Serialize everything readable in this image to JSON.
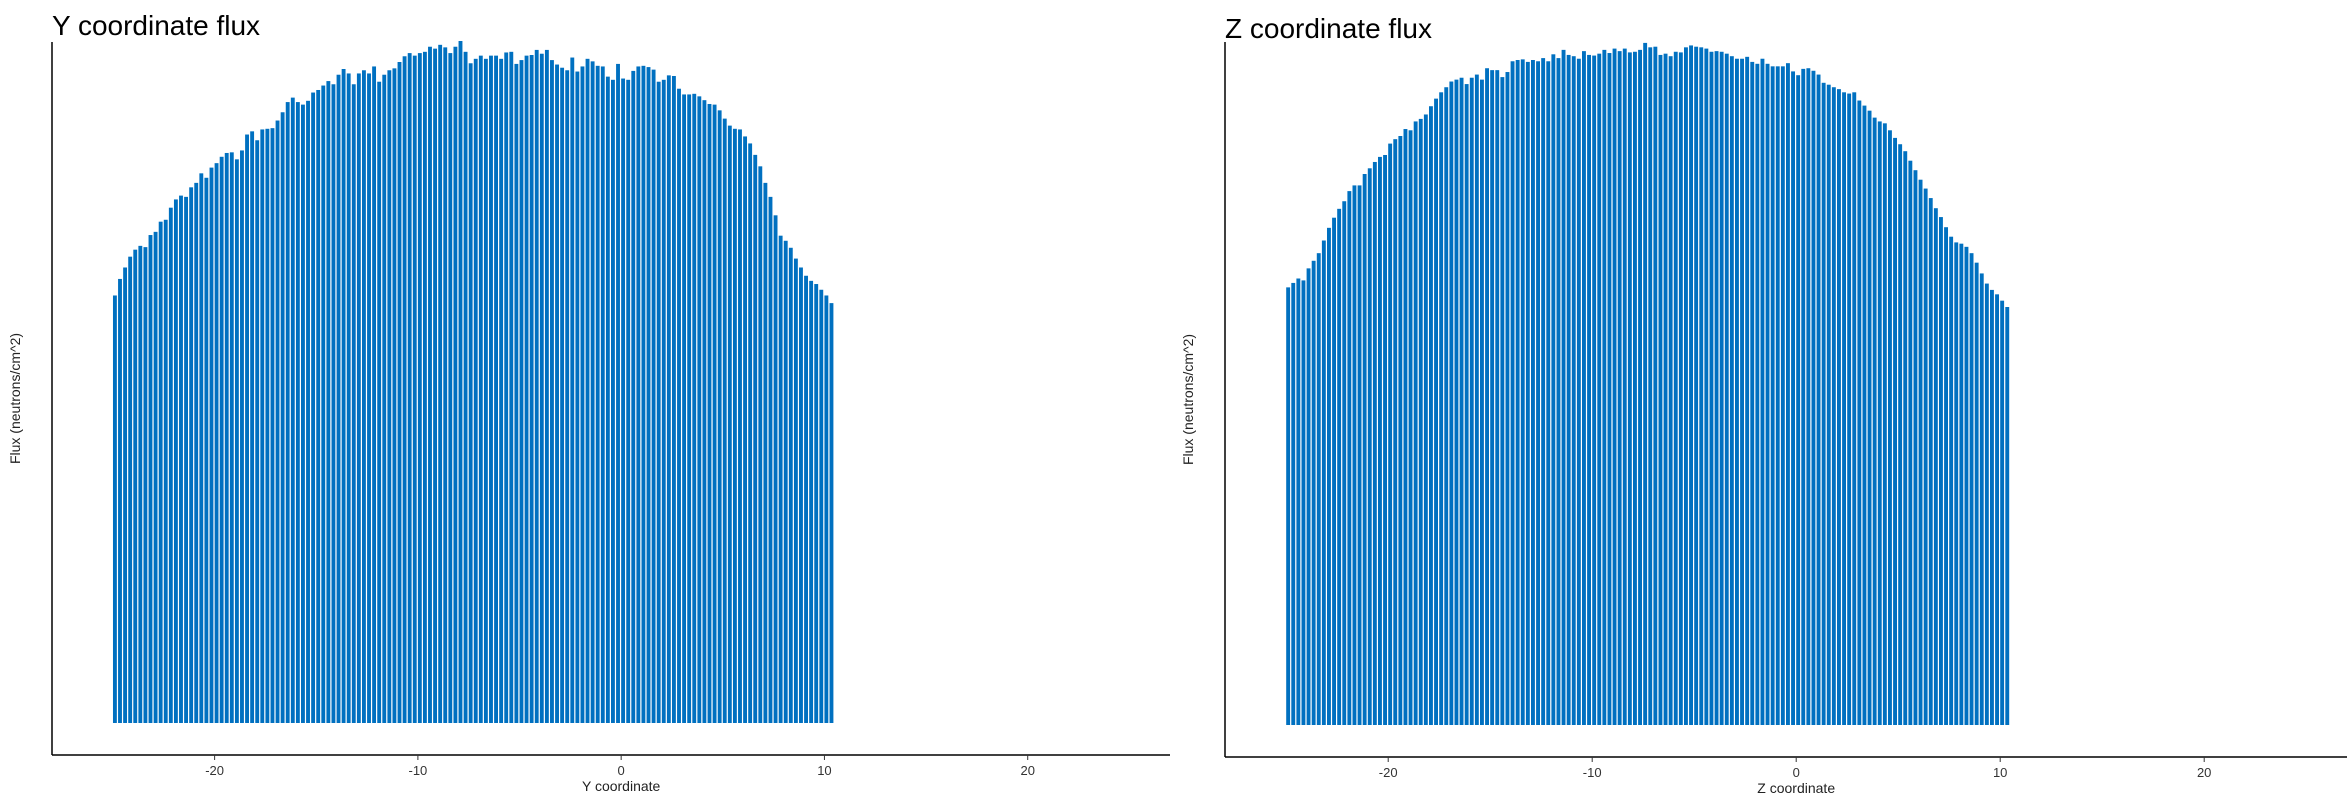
{
  "chart_data": [
    {
      "type": "bar",
      "title": "Y coordinate flux",
      "xlabel": "Y coordinate",
      "ylabel": "Flux (neutrons/cm^2)",
      "color": "#0070c0",
      "xlim": [
        -28,
        27
      ],
      "ylim": [
        0,
        1.05
      ],
      "xticks": [
        -20,
        -10,
        0,
        10,
        20
      ],
      "x_start": -24.875,
      "x_step": 0.25,
      "grid": false,
      "legend": "none",
      "values": [
        0.672,
        0.698,
        0.716,
        0.733,
        0.744,
        0.75,
        0.748,
        0.767,
        0.772,
        0.788,
        0.791,
        0.81,
        0.823,
        0.829,
        0.827,
        0.842,
        0.849,
        0.864,
        0.857,
        0.873,
        0.88,
        0.89,
        0.896,
        0.897,
        0.886,
        0.9,
        0.925,
        0.93,
        0.916,
        0.933,
        0.934,
        0.935,
        0.947,
        0.96,
        0.976,
        0.983,
        0.976,
        0.972,
        0.978,
        0.991,
        0.995,
        1.002,
        1.009,
        1.004,
        1.019,
        1.028,
        1.021,
        1.004,
        1.021,
        1.026,
        1.021,
        1.032,
        1.008,
        1.019,
        1.026,
        1.029,
        1.039,
        1.048,
        1.053,
        1.049,
        1.053,
        1.055,
        1.063,
        1.06,
        1.066,
        1.062,
        1.053,
        1.063,
        1.072,
        1.055,
        1.037,
        1.044,
        1.049,
        1.044,
        1.049,
        1.049,
        1.044,
        1.054,
        1.055,
        1.036,
        1.042,
        1.049,
        1.05,
        1.058,
        1.052,
        1.058,
        1.042,
        1.035,
        1.03,
        1.026,
        1.046,
        1.024,
        1.032,
        1.044,
        1.04,
        1.033,
        1.032,
        1.016,
        1.011,
        1.036,
        1.013,
        1.011,
        1.025,
        1.032,
        1.033,
        1.031,
        1.027,
        1.008,
        1.011,
        1.018,
        1.017,
        0.997,
        0.988,
        0.988,
        0.989,
        0.985,
        0.979,
        0.973,
        0.972,
        0.963,
        0.95,
        0.939,
        0.934,
        0.933,
        0.922,
        0.911,
        0.893,
        0.875,
        0.849,
        0.827,
        0.798,
        0.766,
        0.758,
        0.747,
        0.73,
        0.716,
        0.703,
        0.695,
        0.69,
        0.681,
        0.672,
        0.66
      ]
    },
    {
      "type": "bar",
      "title": "Z coordinate flux",
      "xlabel": "Z coordinate",
      "ylabel": "Flux (neutrons/cm^2)",
      "color": "#0070c0",
      "xlim": [
        -28,
        27
      ],
      "ylim": [
        0,
        1.05
      ],
      "xticks": [
        -20,
        -10,
        0,
        10,
        20
      ],
      "x_start": -24.875,
      "x_step": 0.25,
      "grid": false,
      "legend": "none",
      "values": [
        0.691,
        0.698,
        0.705,
        0.702,
        0.721,
        0.733,
        0.745,
        0.765,
        0.785,
        0.801,
        0.815,
        0.827,
        0.843,
        0.852,
        0.852,
        0.87,
        0.879,
        0.889,
        0.897,
        0.9,
        0.918,
        0.925,
        0.93,
        0.941,
        0.939,
        0.953,
        0.957,
        0.964,
        0.977,
        0.989,
        0.999,
        1.007,
        1.016,
        1.019,
        1.022,
        1.012,
        1.022,
        1.027,
        1.019,
        1.037,
        1.034,
        1.034,
        1.023,
        1.031,
        1.048,
        1.05,
        1.051,
        1.047,
        1.05,
        1.048,
        1.053,
        1.048,
        1.059,
        1.053,
        1.066,
        1.058,
        1.056,
        1.052,
        1.064,
        1.058,
        1.057,
        1.06,
        1.066,
        1.061,
        1.068,
        1.064,
        1.068,
        1.062,
        1.063,
        1.066,
        1.077,
        1.07,
        1.071,
        1.058,
        1.06,
        1.056,
        1.063,
        1.062,
        1.07,
        1.073,
        1.071,
        1.07,
        1.068,
        1.063,
        1.064,
        1.063,
        1.06,
        1.056,
        1.052,
        1.052,
        1.055,
        1.047,
        1.044,
        1.052,
        1.044,
        1.04,
        1.04,
        1.04,
        1.045,
        1.032,
        1.026,
        1.036,
        1.037,
        1.033,
        1.027,
        1.014,
        1.011,
        1.007,
        1.004,
        0.999,
        0.997,
        0.999,
        0.986,
        0.978,
        0.97,
        0.959,
        0.953,
        0.95,
        0.939,
        0.927,
        0.917,
        0.906,
        0.891,
        0.876,
        0.861,
        0.847,
        0.832,
        0.816,
        0.802,
        0.786,
        0.771,
        0.762,
        0.76,
        0.755,
        0.745,
        0.73,
        0.713,
        0.697,
        0.687,
        0.68,
        0.67,
        0.66
      ]
    }
  ]
}
